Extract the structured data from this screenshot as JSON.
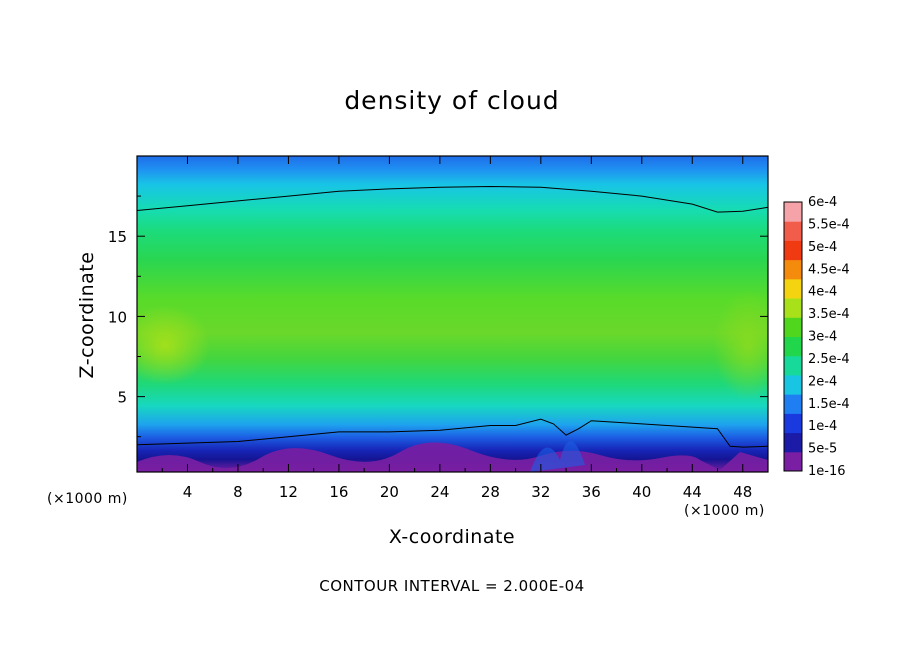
{
  "chart_data": {
    "type": "heatmap",
    "title": "density of cloud",
    "xlabel": "X-coordinate",
    "ylabel": "Z-coordinate",
    "x_unit": "(×1000 m)",
    "y_unit": "(×1000 m)",
    "footnote": "CONTOUR INTERVAL = 2.000E-04",
    "xlim": [
      0,
      50
    ],
    "ylim": [
      0.3,
      20
    ],
    "x_ticks": [
      4,
      8,
      12,
      16,
      20,
      24,
      28,
      32,
      36,
      40,
      44,
      48
    ],
    "y_ticks": [
      5,
      10,
      15
    ],
    "colorbar": {
      "levels": [
        "1e-16",
        "5e-5",
        "1e-4",
        "1.5e-4",
        "2e-4",
        "2.5e-4",
        "3e-4",
        "3.5e-4",
        "4e-4",
        "4.5e-4",
        "5e-4",
        "5.5e-4",
        "6e-4"
      ],
      "colors": [
        "#7a1fa3",
        "#1b1ba8",
        "#1a3ae0",
        "#1f7ff2",
        "#18c6e4",
        "#17d99a",
        "#22d64b",
        "#4fd61d",
        "#a8e11a",
        "#f4d410",
        "#f58b0d",
        "#f03a12",
        "#f25c4a",
        "#f5a3a8"
      ]
    },
    "contour_lines": [
      {
        "level": "2e-4",
        "points": [
          [
            0,
            16.6
          ],
          [
            4,
            16.9
          ],
          [
            8,
            17.2
          ],
          [
            12,
            17.5
          ],
          [
            16,
            17.8
          ],
          [
            20,
            17.95
          ],
          [
            24,
            18.05
          ],
          [
            28,
            18.1
          ],
          [
            32,
            18.05
          ],
          [
            36,
            17.8
          ],
          [
            40,
            17.5
          ],
          [
            44,
            17.0
          ],
          [
            46,
            16.5
          ],
          [
            48,
            16.55
          ],
          [
            50,
            16.8
          ]
        ]
      },
      {
        "level": "2e-4",
        "points": [
          [
            0,
            2.0
          ],
          [
            4,
            2.1
          ],
          [
            8,
            2.2
          ],
          [
            12,
            2.5
          ],
          [
            16,
            2.8
          ],
          [
            20,
            2.8
          ],
          [
            24,
            2.9
          ],
          [
            28,
            3.2
          ],
          [
            30,
            3.2
          ],
          [
            32,
            3.6
          ],
          [
            33,
            3.3
          ],
          [
            34,
            2.6
          ],
          [
            35,
            3.0
          ],
          [
            36,
            3.5
          ],
          [
            40,
            3.3
          ],
          [
            44,
            3.1
          ],
          [
            46,
            3.0
          ],
          [
            47,
            1.9
          ],
          [
            48,
            1.85
          ],
          [
            50,
            1.9
          ]
        ]
      }
    ]
  }
}
